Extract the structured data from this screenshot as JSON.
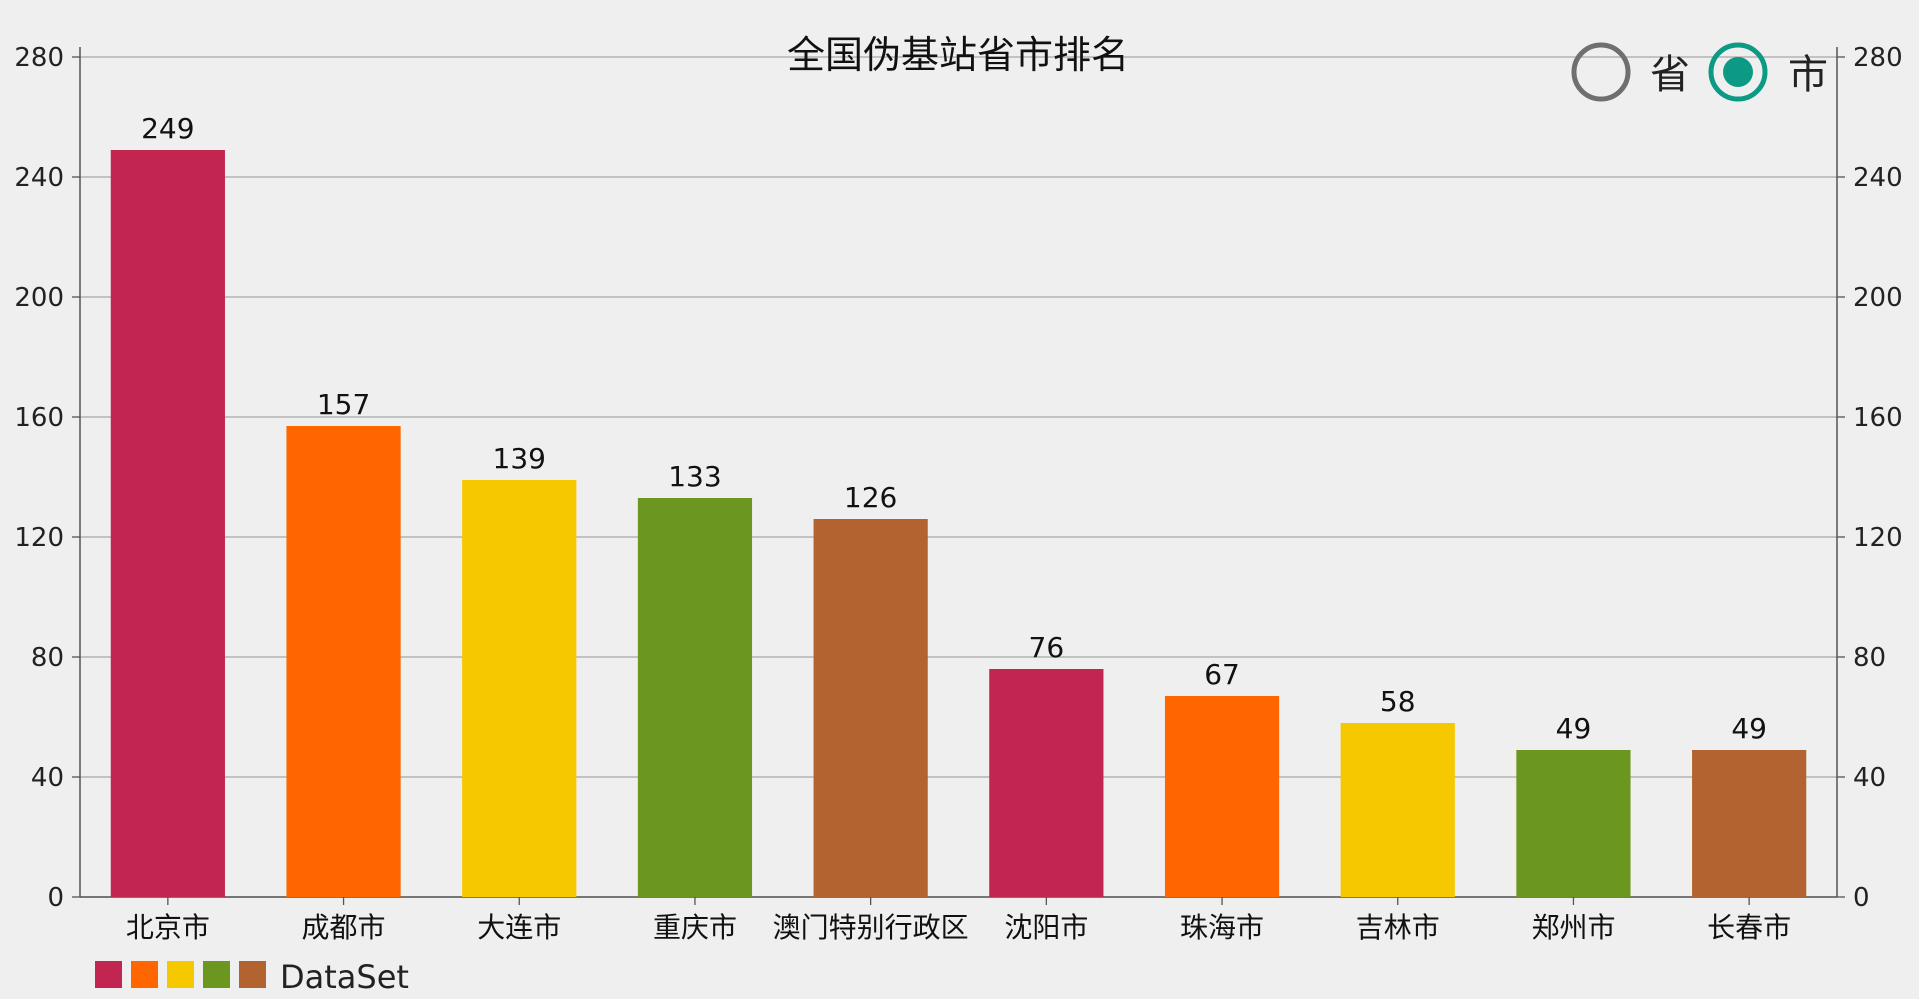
{
  "chart_data": {
    "type": "bar",
    "title": "全国伪基站省市排名",
    "categories": [
      "北京市",
      "成都市",
      "大连市",
      "重庆市",
      "澳门特别行政区",
      "沈阳市",
      "珠海市",
      "吉林市",
      "郑州市",
      "长春市"
    ],
    "series": [
      {
        "name": "DataSet",
        "values": [
          249,
          157,
          139,
          133,
          126,
          76,
          67,
          58,
          49,
          49
        ]
      }
    ],
    "colors": [
      "#c2254f",
      "#ff6600",
      "#f5c800",
      "#6b9620",
      "#b3632f"
    ],
    "xlabel": "",
    "ylabel": "",
    "ylim": [
      0,
      280
    ],
    "yticks": [
      0,
      40,
      80,
      120,
      160,
      200,
      240,
      280
    ],
    "grid": true,
    "legend_position": "bottom-left",
    "dual_y_axis": true
  },
  "toggle": {
    "options": [
      {
        "label": "省",
        "selected": false
      },
      {
        "label": "市",
        "selected": true
      }
    ],
    "accent": "#0d9a85"
  }
}
